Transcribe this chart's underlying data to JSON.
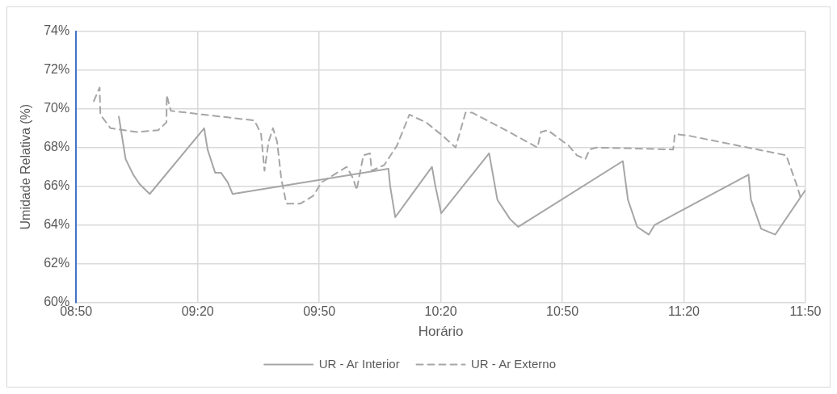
{
  "chart_data": {
    "type": "line",
    "xlabel": "Horário",
    "ylabel": "Umidade Relativa (%)",
    "xlim": [
      8.8333,
      11.8333
    ],
    "xticks": [
      {
        "value": 8.8333,
        "label": "08:50"
      },
      {
        "value": 9.3333,
        "label": "09:20"
      },
      {
        "value": 9.8333,
        "label": "09:50"
      },
      {
        "value": 10.3333,
        "label": "10:20"
      },
      {
        "value": 10.8333,
        "label": "10:50"
      },
      {
        "value": 11.3333,
        "label": "11:20"
      },
      {
        "value": 11.8333,
        "label": "11:50"
      }
    ],
    "ylim": [
      60,
      74
    ],
    "yticks": [
      {
        "value": 60,
        "label": "60%"
      },
      {
        "value": 62,
        "label": "62%"
      },
      {
        "value": 64,
        "label": "64%"
      },
      {
        "value": 66,
        "label": "66%"
      },
      {
        "value": 68,
        "label": "68%"
      },
      {
        "value": 70,
        "label": "70%"
      },
      {
        "value": 72,
        "label": "72%"
      },
      {
        "value": 74,
        "label": "74%"
      }
    ],
    "grid": true,
    "legend": "bottom",
    "marker": "none",
    "series": [
      {
        "name": "UR - Ar Interior",
        "color": "#a6a6a6",
        "line_style": "solid",
        "x": [
          9.009,
          9.023,
          9.037,
          9.068,
          9.095,
          9.136,
          9.36,
          9.374,
          9.405,
          9.429,
          9.457,
          9.477,
          10.118,
          10.125,
          10.146,
          10.297,
          10.311,
          10.335,
          10.532,
          10.566,
          10.618,
          10.652,
          11.082,
          11.103,
          11.141,
          11.189,
          11.213,
          11.599,
          11.609,
          11.651,
          11.709,
          11.833
        ],
        "values": [
          69.6,
          68.5,
          67.4,
          66.6,
          66.1,
          65.6,
          69.0,
          67.9,
          66.7,
          66.7,
          66.2,
          65.6,
          66.9,
          66.0,
          64.4,
          67.0,
          66.0,
          64.6,
          67.7,
          65.3,
          64.3,
          63.9,
          67.3,
          65.3,
          63.9,
          63.5,
          64.0,
          66.6,
          65.3,
          63.8,
          63.5,
          65.8
        ]
      },
      {
        "name": "UR - Ar Externo",
        "color": "#a6a6a6",
        "line_style": "dashed",
        "x": [
          8.906,
          8.93,
          8.933,
          8.975,
          9.085,
          9.171,
          9.205,
          9.206,
          9.223,
          9.36,
          9.567,
          9.594,
          9.608,
          9.625,
          9.643,
          9.66,
          9.677,
          9.698,
          9.756,
          9.808,
          9.843,
          9.946,
          9.973,
          9.987,
          10.015,
          10.042,
          10.049,
          10.101,
          10.153,
          10.204,
          10.273,
          10.342,
          10.394,
          10.435,
          10.463,
          10.6,
          10.731,
          10.745,
          10.773,
          10.859,
          10.893,
          10.928,
          10.945,
          10.973,
          11.289,
          11.296,
          11.358,
          11.754,
          11.799,
          11.813
        ],
        "values": [
          70.4,
          71.1,
          69.7,
          69.0,
          68.8,
          68.9,
          69.3,
          70.7,
          69.9,
          69.7,
          69.4,
          68.7,
          66.8,
          68.3,
          69.0,
          68.3,
          66.4,
          65.1,
          65.1,
          65.5,
          66.2,
          67.0,
          66.4,
          65.8,
          67.6,
          67.7,
          66.8,
          67.1,
          68.1,
          69.7,
          69.3,
          68.6,
          68.0,
          69.8,
          69.8,
          68.9,
          68.0,
          68.8,
          68.9,
          68.1,
          67.6,
          67.4,
          67.9,
          68.0,
          67.9,
          68.7,
          68.6,
          67.6,
          66.0,
          65.4
        ]
      }
    ]
  }
}
